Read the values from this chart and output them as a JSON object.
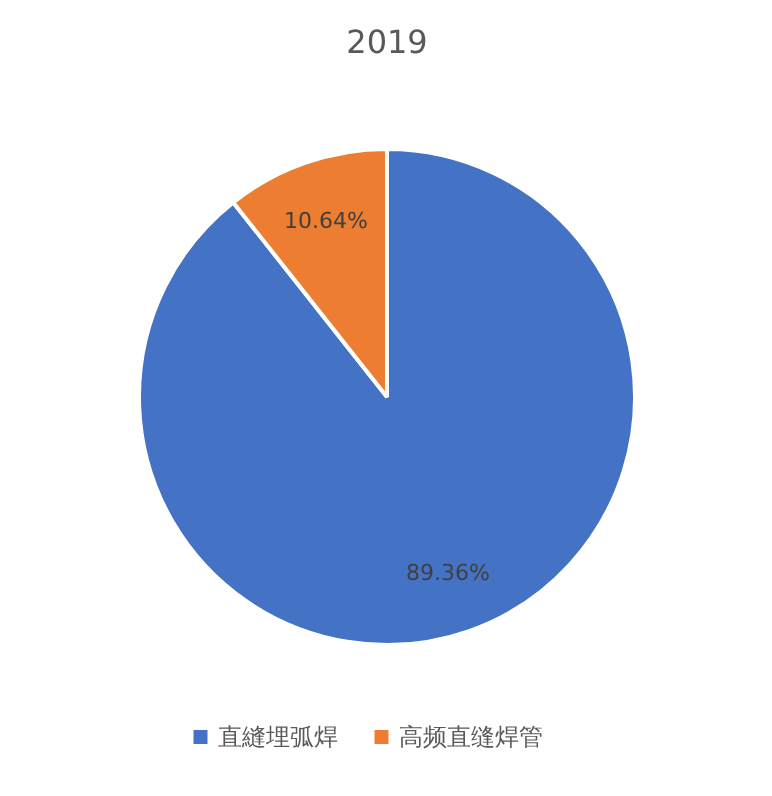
{
  "chart_data": {
    "type": "pie",
    "title": "2019",
    "categories": [
      "直縫埋弧焊",
      "高频直缝焊管"
    ],
    "values": [
      89.36,
      10.64
    ],
    "colors": [
      "#4472c4",
      "#ed7d31"
    ],
    "value_labels": [
      "89.36%",
      "10.64%"
    ],
    "legend": "bottom"
  }
}
